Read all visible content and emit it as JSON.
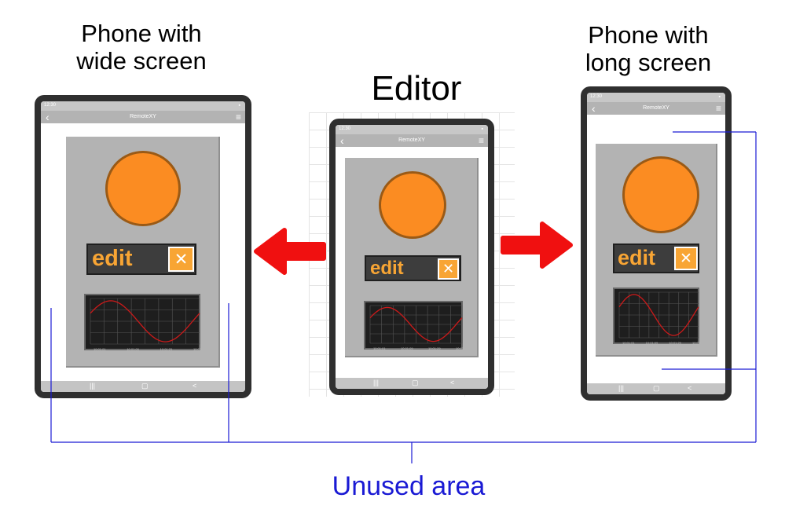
{
  "captions": {
    "wide": [
      "Phone with",
      "wide screen"
    ],
    "editor": "Editor",
    "long": [
      "Phone with",
      "long screen"
    ],
    "unused": "Unused area"
  },
  "phone_ui": {
    "time": "12:30",
    "app_title": "RemoteXY",
    "edit_label": "edit",
    "clear_symbol": "✕",
    "nav_recent": "|||",
    "nav_home": "▢",
    "nav_back": "<",
    "chart_time_labels": [
      "10:01:01",
      "10:01:09",
      "10:01:29",
      "10:01:37"
    ]
  },
  "colors": {
    "arrow": "#f01010",
    "bracket": "#1a1ad4",
    "knob": "#fb8c22",
    "edit_text": "#f8a534",
    "chart_line": "#cc1a1a"
  }
}
